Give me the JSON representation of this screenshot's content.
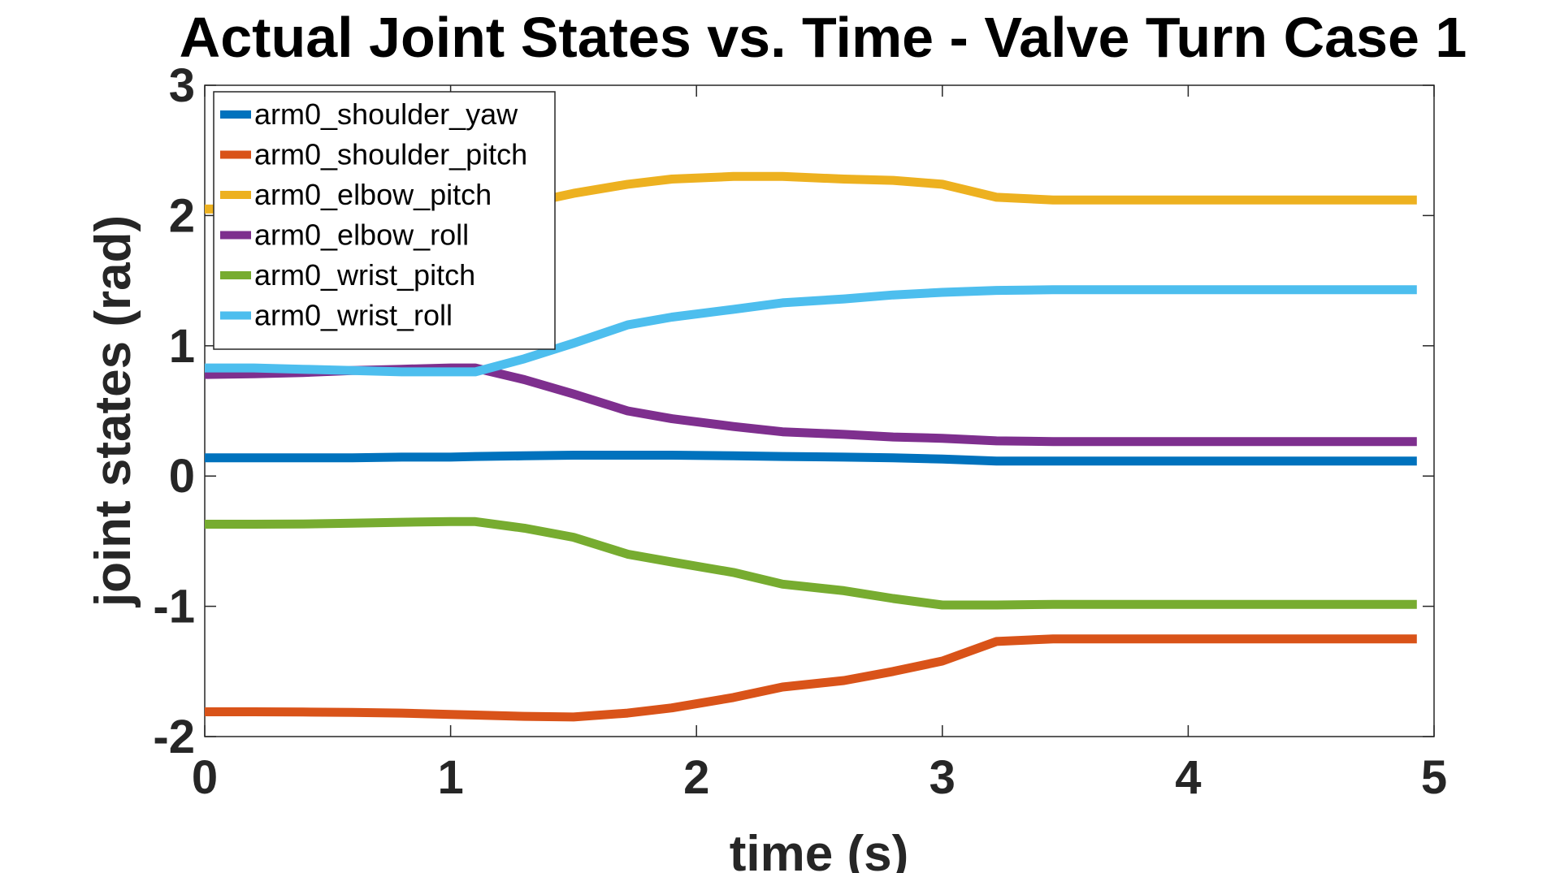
{
  "chart_data": {
    "type": "line",
    "title": "Actual Joint States vs. Time - Valve Turn Case 1",
    "xlabel": "time (s)",
    "ylabel": "joint states (rad)",
    "xlim": [
      0,
      5
    ],
    "ylim": [
      -2,
      3
    ],
    "xticks": [
      "0",
      "1",
      "2",
      "3",
      "4",
      "5"
    ],
    "yticks": [
      "-2",
      "-1",
      "0",
      "1",
      "2",
      "3"
    ],
    "grid": true,
    "legend_position": "top-left",
    "x": [
      0,
      0.2,
      0.4,
      0.6,
      0.8,
      1.0,
      1.1,
      1.3,
      1.5,
      1.72,
      1.9,
      2.15,
      2.35,
      2.6,
      2.8,
      3.0,
      3.22,
      3.45,
      3.7,
      4.0,
      4.3,
      4.6,
      4.93
    ],
    "series": [
      {
        "name": "arm0_shoulder_yaw",
        "color": "#0072BD",
        "values": [
          0.14,
          0.14,
          0.14,
          0.14,
          0.145,
          0.145,
          0.15,
          0.155,
          0.16,
          0.16,
          0.16,
          0.155,
          0.15,
          0.145,
          0.14,
          0.13,
          0.115,
          0.115,
          0.115,
          0.115,
          0.115,
          0.115,
          0.115
        ]
      },
      {
        "name": "arm0_shoulder_pitch",
        "color": "#D95319",
        "values": [
          -1.81,
          -1.81,
          -1.812,
          -1.815,
          -1.82,
          -1.83,
          -1.835,
          -1.845,
          -1.85,
          -1.82,
          -1.78,
          -1.7,
          -1.62,
          -1.57,
          -1.5,
          -1.42,
          -1.27,
          -1.25,
          -1.25,
          -1.25,
          -1.25,
          -1.25,
          -1.25
        ]
      },
      {
        "name": "arm0_elbow_pitch",
        "color": "#EDB120",
        "values": [
          2.05,
          2.05,
          2.05,
          2.05,
          2.05,
          2.05,
          2.05,
          2.09,
          2.17,
          2.24,
          2.28,
          2.3,
          2.3,
          2.28,
          2.27,
          2.24,
          2.14,
          2.12,
          2.12,
          2.12,
          2.12,
          2.12,
          2.12
        ]
      },
      {
        "name": "arm0_elbow_roll",
        "color": "#7E2F8E",
        "values": [
          0.78,
          0.785,
          0.795,
          0.81,
          0.82,
          0.83,
          0.83,
          0.74,
          0.63,
          0.5,
          0.44,
          0.38,
          0.34,
          0.32,
          0.3,
          0.29,
          0.27,
          0.265,
          0.265,
          0.265,
          0.265,
          0.265,
          0.265
        ]
      },
      {
        "name": "arm0_wrist_pitch",
        "color": "#77AC30",
        "values": [
          -0.37,
          -0.37,
          -0.368,
          -0.362,
          -0.355,
          -0.35,
          -0.35,
          -0.4,
          -0.47,
          -0.6,
          -0.66,
          -0.74,
          -0.83,
          -0.88,
          -0.94,
          -0.99,
          -0.99,
          -0.985,
          -0.985,
          -0.985,
          -0.985,
          -0.985,
          -0.985
        ]
      },
      {
        "name": "arm0_wrist_roll",
        "color": "#4DBEEE",
        "values": [
          0.83,
          0.83,
          0.82,
          0.81,
          0.8,
          0.8,
          0.8,
          0.9,
          1.02,
          1.16,
          1.22,
          1.28,
          1.33,
          1.36,
          1.39,
          1.41,
          1.425,
          1.43,
          1.43,
          1.43,
          1.43,
          1.43,
          1.43
        ]
      }
    ]
  }
}
